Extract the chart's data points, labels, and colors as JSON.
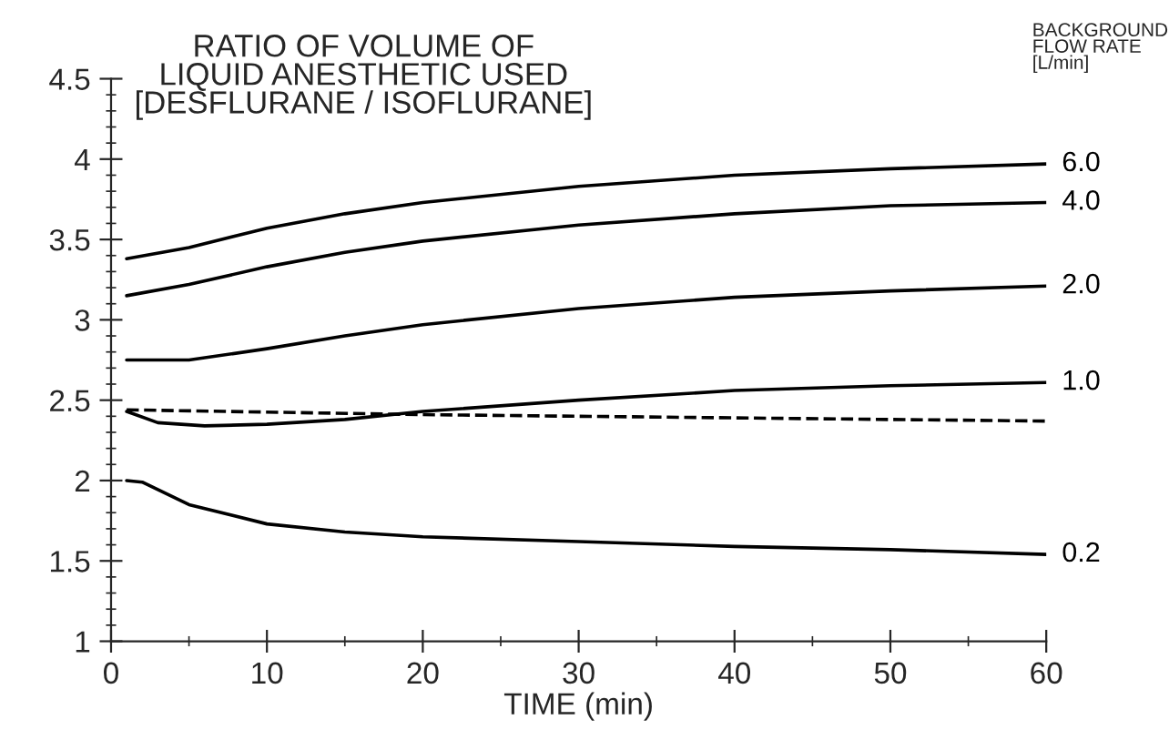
{
  "chart_data": {
    "type": "line",
    "title": "RATIO OF VOLUME OF\nLIQUID ANESTHETIC USED\n[DESFLURANE / ISOFLURANE]",
    "xlabel": "TIME (min)",
    "xlim": [
      0,
      60
    ],
    "xticks": [
      0,
      10,
      20,
      30,
      40,
      50,
      60
    ],
    "ylim": [
      1,
      4.5
    ],
    "yticks": [
      1,
      1.5,
      2,
      2.5,
      3,
      3.5,
      4,
      4.5
    ],
    "grid": false,
    "legend": false,
    "line_style": "solid",
    "marker": "none",
    "annotations": [
      "BACKGROUND\nFLOW RATE\n[L/min]"
    ],
    "series": [
      {
        "name": "6.0",
        "color": "#000000",
        "x": [
          1,
          5,
          10,
          15,
          20,
          30,
          40,
          50,
          60
        ],
        "values": [
          3.38,
          3.45,
          3.57,
          3.66,
          3.73,
          3.83,
          3.9,
          3.94,
          3.97
        ]
      },
      {
        "name": "4.0",
        "color": "#000000",
        "x": [
          1,
          5,
          10,
          15,
          20,
          30,
          40,
          50,
          60
        ],
        "values": [
          3.15,
          3.22,
          3.33,
          3.42,
          3.49,
          3.59,
          3.66,
          3.71,
          3.73
        ]
      },
      {
        "name": "2.0",
        "color": "#000000",
        "x": [
          1,
          5,
          10,
          15,
          20,
          30,
          40,
          50,
          60
        ],
        "values": [
          2.75,
          2.75,
          2.82,
          2.9,
          2.97,
          3.07,
          3.14,
          3.18,
          3.21
        ]
      },
      {
        "name": "1.0",
        "color": "#000000",
        "x": [
          1,
          3,
          6,
          10,
          15,
          20,
          30,
          40,
          50,
          60
        ],
        "values": [
          2.43,
          2.36,
          2.34,
          2.35,
          2.38,
          2.43,
          2.5,
          2.56,
          2.59,
          2.61
        ]
      },
      {
        "color": "#000000",
        "line_style": "dashed",
        "x": [
          1,
          20,
          60
        ],
        "values": [
          2.44,
          2.41,
          2.37
        ]
      },
      {
        "name": "0.2",
        "color": "#000000",
        "x": [
          1,
          2,
          5,
          10,
          15,
          20,
          30,
          40,
          50,
          60
        ],
        "values": [
          2.0,
          1.99,
          1.85,
          1.73,
          1.68,
          1.65,
          1.62,
          1.59,
          1.57,
          1.54
        ]
      }
    ]
  }
}
